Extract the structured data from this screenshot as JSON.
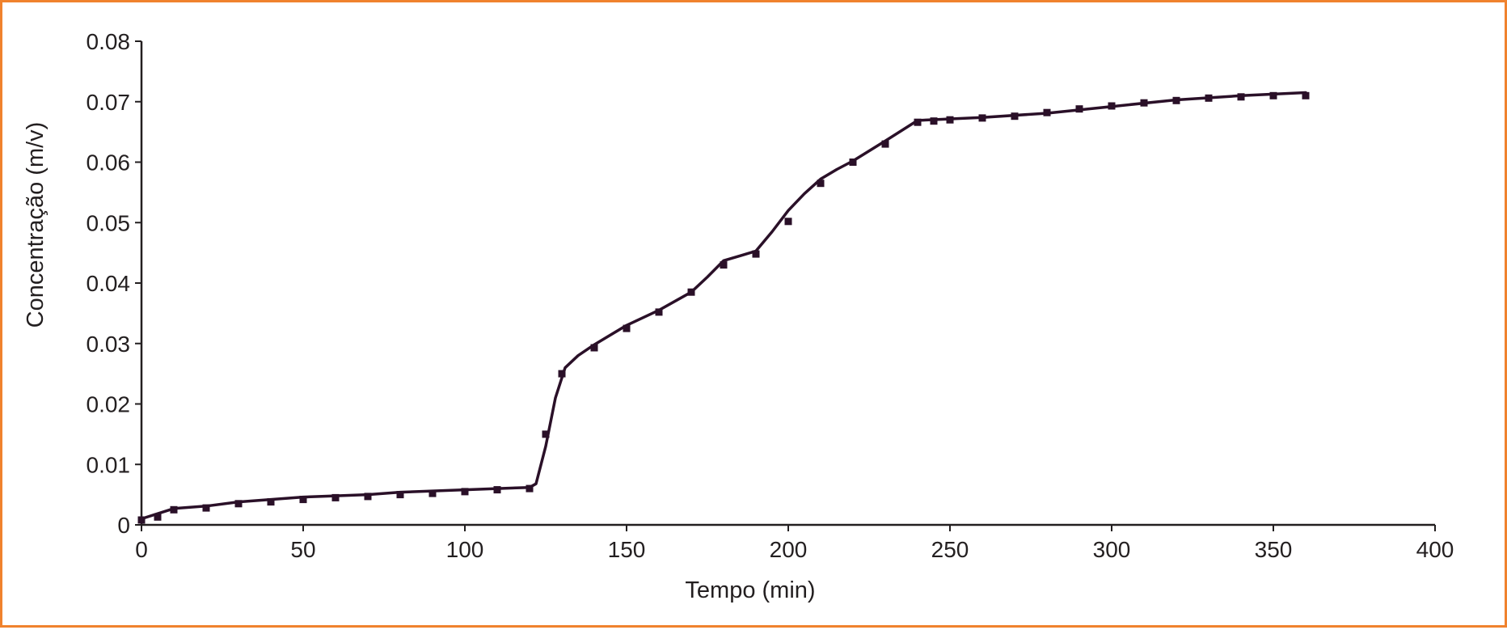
{
  "colors": {
    "frame_border": "#f0822d",
    "axis": "#231f20",
    "series_line": "#2a1028",
    "series_points": "#2a1028"
  },
  "chart_data": {
    "type": "line",
    "xlabel": "Tempo (min)",
    "ylabel": "Concentração (m/v)",
    "xlim": [
      0,
      400
    ],
    "ylim": [
      0,
      0.08
    ],
    "x_ticks": [
      0,
      50,
      100,
      150,
      200,
      250,
      300,
      350,
      400
    ],
    "y_ticks": [
      0,
      0.01,
      0.02,
      0.03,
      0.04,
      0.05,
      0.06,
      0.07,
      0.08
    ],
    "x_tick_labels": [
      "0",
      "50",
      "100",
      "150",
      "200",
      "250",
      "300",
      "350",
      "400"
    ],
    "y_tick_labels": [
      "0",
      "0.01",
      "0.02",
      "0.03",
      "0.04",
      "0.05",
      "0.06",
      "0.07",
      "0.08"
    ],
    "grid": false,
    "legend": "none",
    "series": [
      {
        "kind": "points",
        "x": [
          0,
          5,
          10,
          20,
          30,
          40,
          50,
          60,
          70,
          80,
          90,
          100,
          110,
          120,
          125,
          130,
          140,
          150,
          160,
          170,
          180,
          190,
          200,
          210,
          220,
          230,
          240,
          245,
          250,
          260,
          270,
          280,
          290,
          300,
          310,
          320,
          330,
          340,
          350,
          360
        ],
        "y": [
          0.0008,
          0.0013,
          0.0025,
          0.0028,
          0.0035,
          0.0038,
          0.0042,
          0.0045,
          0.0047,
          0.005,
          0.0052,
          0.0055,
          0.0058,
          0.006,
          0.015,
          0.025,
          0.0293,
          0.0325,
          0.0352,
          0.0385,
          0.043,
          0.0448,
          0.0502,
          0.0565,
          0.06,
          0.063,
          0.0666,
          0.0668,
          0.067,
          0.0673,
          0.0676,
          0.0682,
          0.0688,
          0.0693,
          0.0698,
          0.0702,
          0.0706,
          0.0708,
          0.071,
          0.071
        ]
      },
      {
        "kind": "line",
        "x": [
          0,
          10,
          20,
          30,
          40,
          50,
          60,
          70,
          80,
          90,
          100,
          110,
          120,
          122,
          125,
          128,
          131,
          135,
          140,
          150,
          160,
          170,
          175,
          180,
          185,
          190,
          195,
          200,
          205,
          210,
          215,
          220,
          230,
          240,
          260,
          280,
          300,
          320,
          340,
          360
        ],
        "y": [
          0.001,
          0.0027,
          0.0031,
          0.0038,
          0.0042,
          0.0046,
          0.0048,
          0.005,
          0.0054,
          0.0056,
          0.0058,
          0.006,
          0.0062,
          0.0068,
          0.013,
          0.021,
          0.026,
          0.028,
          0.0298,
          0.033,
          0.0355,
          0.0385,
          0.041,
          0.0437,
          0.0445,
          0.0453,
          0.0485,
          0.052,
          0.0548,
          0.0572,
          0.0588,
          0.0602,
          0.0635,
          0.0669,
          0.0674,
          0.0681,
          0.0692,
          0.0703,
          0.071,
          0.0715
        ]
      }
    ]
  }
}
